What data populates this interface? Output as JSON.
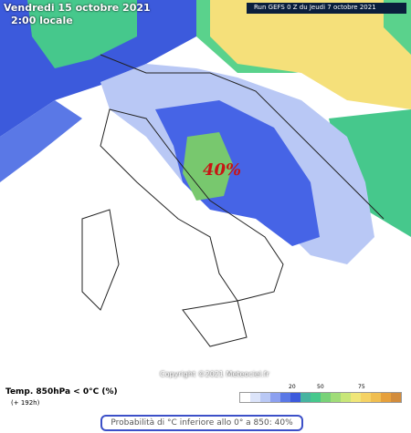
{
  "header": {
    "date": "Vendredi 15 octobre 2021",
    "time": "2:00 locale",
    "run": "Run GEFS 0 Z du Jeudi 7 octobre 2021"
  },
  "map": {
    "annotation": "40%",
    "copyright": "Copyright ©2021 Meteociel.fr"
  },
  "legend": {
    "title": "Temp. 850hPa < 0°C (%)",
    "subtitle": "(+ 192h)",
    "labels": [
      "20",
      "50",
      "75"
    ]
  },
  "caption": "Probabilità di °C inferiore allo 0° a 850: 40%"
}
